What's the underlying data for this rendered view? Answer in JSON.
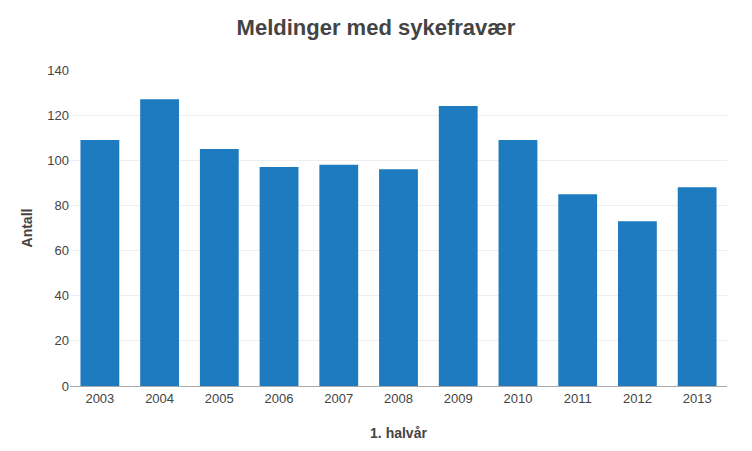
{
  "chart_data": {
    "type": "bar",
    "title": "Meldinger med sykefravær",
    "xlabel": "1. halvår",
    "ylabel": "Antall",
    "categories": [
      "2003",
      "2004",
      "2005",
      "2006",
      "2007",
      "2008",
      "2009",
      "2010",
      "2011",
      "2012",
      "2013"
    ],
    "values": [
      109,
      127,
      105,
      97,
      98,
      96,
      124,
      109,
      85,
      73,
      88
    ],
    "color": "#1f7bbf",
    "ylim": [
      0,
      140
    ],
    "yticks": [
      0,
      20,
      40,
      60,
      80,
      100,
      120,
      140
    ],
    "grid": true
  }
}
